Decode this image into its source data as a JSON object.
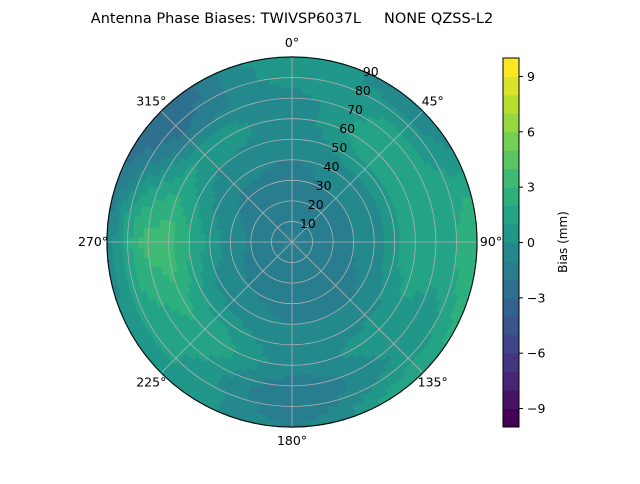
{
  "chart_data": {
    "type": "heatmap",
    "subtype": "polar-filled-contour",
    "title": "Antenna Phase Biases: TWIVSP6037L     NONE QZSS-L2",
    "colormap": "viridis",
    "levels": {
      "min": -10,
      "max": 10,
      "step": 1
    },
    "angle_ticks": [
      "0°",
      "45°",
      "90°",
      "135°",
      "180°",
      "225°",
      "270°",
      "315°"
    ],
    "angle_tick_values": [
      0,
      45,
      90,
      135,
      180,
      225,
      270,
      315
    ],
    "radial_ticks": [
      "10",
      "20",
      "30",
      "40",
      "50",
      "60",
      "70",
      "80",
      "90"
    ],
    "radial_tick_values": [
      10,
      20,
      30,
      40,
      50,
      60,
      70,
      80,
      90
    ],
    "rlim": [
      0,
      90
    ],
    "grid": true,
    "colorbar": {
      "label": "Bias (mm)",
      "ticks": [
        "−9",
        "−6",
        "−3",
        "0",
        "3",
        "6",
        "9"
      ],
      "tick_values": [
        -9,
        -6,
        -3,
        0,
        3,
        6,
        9
      ]
    },
    "grid_azimuths": [
      0,
      45,
      90,
      135,
      180,
      225,
      270,
      315
    ],
    "grid_radii": [
      0,
      20,
      40,
      60,
      75,
      90
    ],
    "values": [
      [
        -1.5,
        -1.5,
        -1.5,
        -1.5,
        -1.5,
        -1.5,
        -1.5,
        -1.5
      ],
      [
        -1.5,
        -1.5,
        -1.5,
        -1.5,
        -1.5,
        -1.5,
        -1.2,
        -1.5
      ],
      [
        -1.0,
        -0.5,
        -0.5,
        -1.0,
        -1.0,
        -0.5,
        0.5,
        -0.8
      ],
      [
        -0.5,
        2.0,
        2.0,
        0.5,
        -0.5,
        2.0,
        3.5,
        1.0
      ],
      [
        0.0,
        1.0,
        1.5,
        0.0,
        -2.0,
        1.0,
        3.0,
        -2.0
      ],
      [
        1.0,
        -1.0,
        3.0,
        2.0,
        -1.0,
        1.0,
        -1.0,
        -3.0
      ]
    ]
  }
}
